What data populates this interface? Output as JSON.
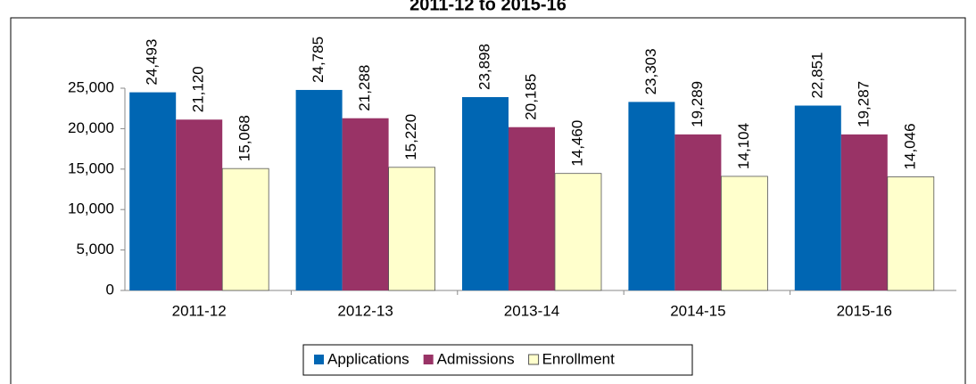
{
  "chart_data": {
    "type": "bar",
    "title": "2011-12 to 2015-16",
    "categories": [
      "2011-12",
      "2012-13",
      "2013-14",
      "2014-15",
      "2015-16"
    ],
    "series": [
      {
        "name": "Applications",
        "color": "#0066b3",
        "values": [
          24493,
          24785,
          23898,
          23303,
          22851
        ],
        "value_labels": [
          "24,493",
          "24,785",
          "23,898",
          "23,303",
          "22,851"
        ]
      },
      {
        "name": "Admissions",
        "color": "#993366",
        "values": [
          21120,
          21288,
          20185,
          19289,
          19287
        ],
        "value_labels": [
          "21,120",
          "21,288",
          "20,185",
          "19,289",
          "19,287"
        ]
      },
      {
        "name": "Enrollment",
        "color": "#ffffcc",
        "values": [
          15068,
          15220,
          14460,
          14104,
          14046
        ],
        "value_labels": [
          "15,068",
          "15,220",
          "14,460",
          "14,104",
          "14,046"
        ]
      }
    ],
    "ylim": [
      0,
      25000
    ],
    "yticks": [
      0,
      {
        "value": 5000,
        "label": "5,000"
      },
      {
        "value": 10000,
        "label": "10,000"
      },
      {
        "value": 15000,
        "label": "15,000"
      },
      {
        "value": 20000,
        "label": "20,000"
      },
      {
        "value": 25000,
        "label": "25,000"
      }
    ],
    "legend": "bottom"
  }
}
